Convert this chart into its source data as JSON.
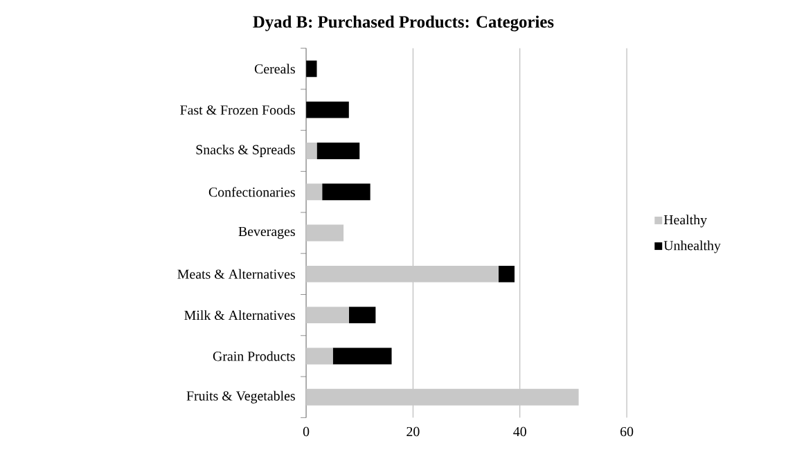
{
  "chart_data": {
    "type": "bar",
    "orientation": "horizontal",
    "stacked": true,
    "title": "Dyad B: Purchased Products: Categories",
    "categories": [
      "Cereals",
      "Fast & Frozen Foods",
      "Snacks & Spreads",
      "Confectionaries",
      "Beverages",
      "Meats & Alternatives",
      "Milk & Alternatives",
      "Grain Products",
      "Fruits & Vegetables"
    ],
    "series": [
      {
        "name": "Healthy",
        "color": "#c8c8c8",
        "values": [
          0,
          0,
          2,
          3,
          7,
          36,
          8,
          5,
          51
        ]
      },
      {
        "name": "Unhealthy",
        "color": "#000000",
        "values": [
          2,
          8,
          8,
          9,
          0,
          3,
          5,
          11,
          0
        ]
      }
    ],
    "xlim": [
      0,
      60
    ],
    "xticks": [
      0,
      20,
      40,
      60
    ],
    "grid": "x",
    "legend": "right"
  }
}
